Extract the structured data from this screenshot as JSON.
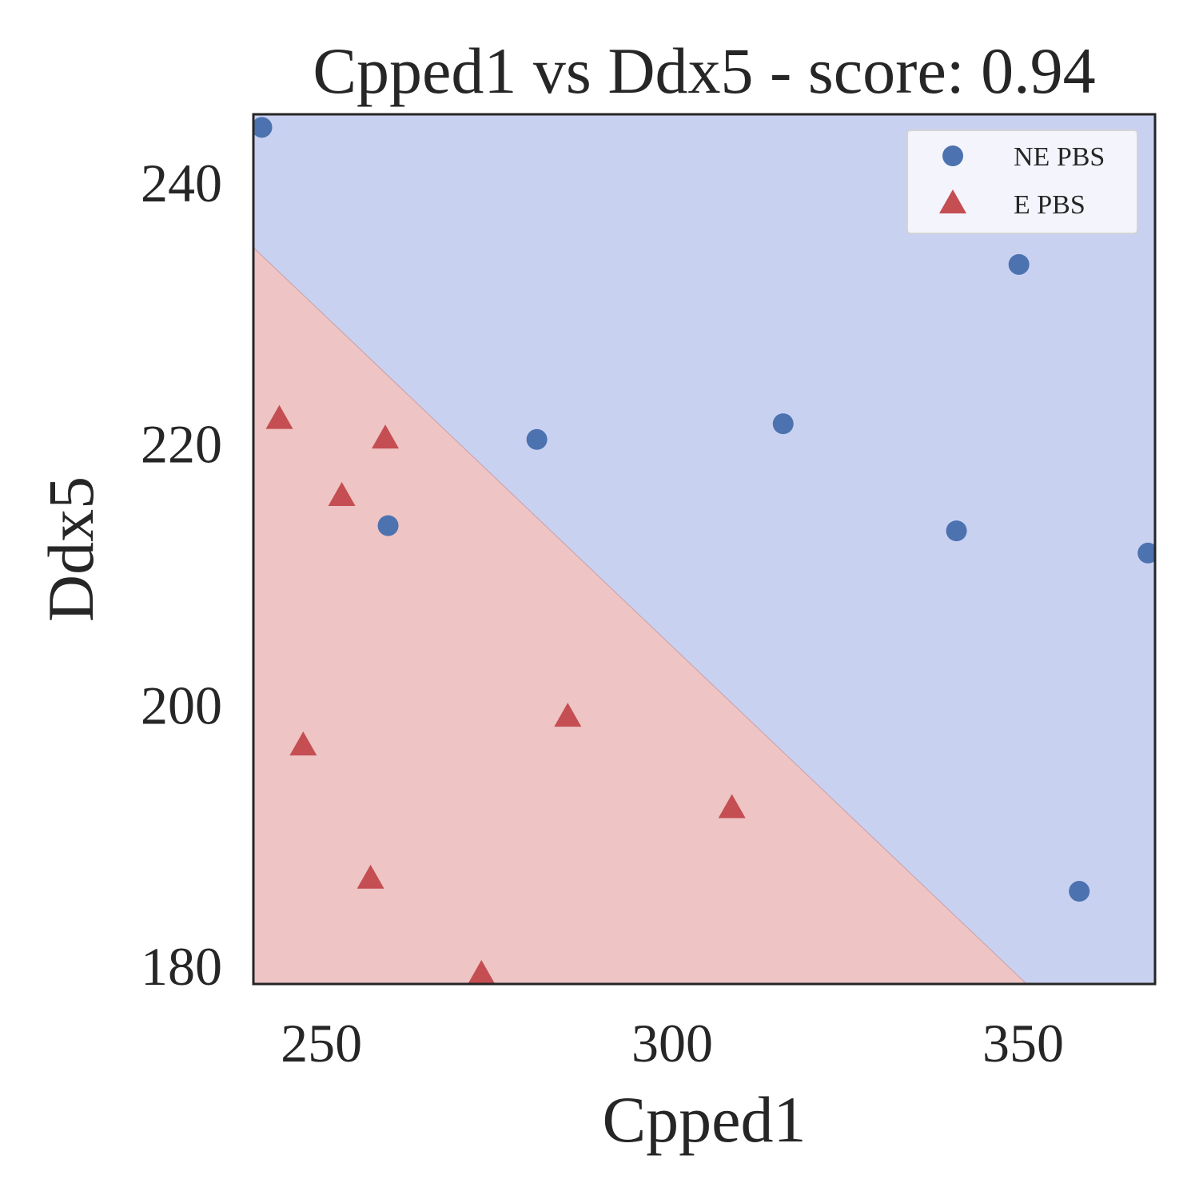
{
  "chart_data": {
    "type": "scatter",
    "title": "Cpped1 vs Ddx5 - score: 0.94",
    "xlabel": "Cpped1",
    "ylabel": "Ddx5",
    "xlim": [
      240.3,
      368.8
    ],
    "ylim": [
      178.6,
      245.2
    ],
    "xticks": [
      250,
      300,
      350
    ],
    "yticks": [
      180,
      200,
      220,
      240
    ],
    "grid": false,
    "legend_position": "top-right",
    "decision_boundary": {
      "points": [
        [
          240.3,
          235.0
        ],
        [
          350.5,
          178.6
        ]
      ],
      "upper_region_class": "NE PBS",
      "lower_region_class": "E PBS",
      "upper_region_color": "#c9d1f1",
      "lower_region_color": "#eec4c4"
    },
    "series": [
      {
        "name": "NE PBS",
        "marker": "circle",
        "color": "#4c72b0",
        "points": [
          [
            241.5,
            244.2
          ],
          [
            259.5,
            213.7
          ],
          [
            280.7,
            220.3
          ],
          [
            315.8,
            221.5
          ],
          [
            340.5,
            213.3
          ],
          [
            349.4,
            233.7
          ],
          [
            358.0,
            185.7
          ],
          [
            367.8,
            211.6
          ]
        ]
      },
      {
        "name": "E PBS",
        "marker": "triangle",
        "color": "#c44e52",
        "points": [
          [
            244.0,
            221.8
          ],
          [
            247.4,
            196.8
          ],
          [
            252.9,
            215.9
          ],
          [
            257.0,
            186.6
          ],
          [
            259.1,
            220.3
          ],
          [
            272.8,
            179.3
          ],
          [
            285.1,
            199.0
          ],
          [
            308.5,
            192.0
          ]
        ]
      }
    ]
  }
}
